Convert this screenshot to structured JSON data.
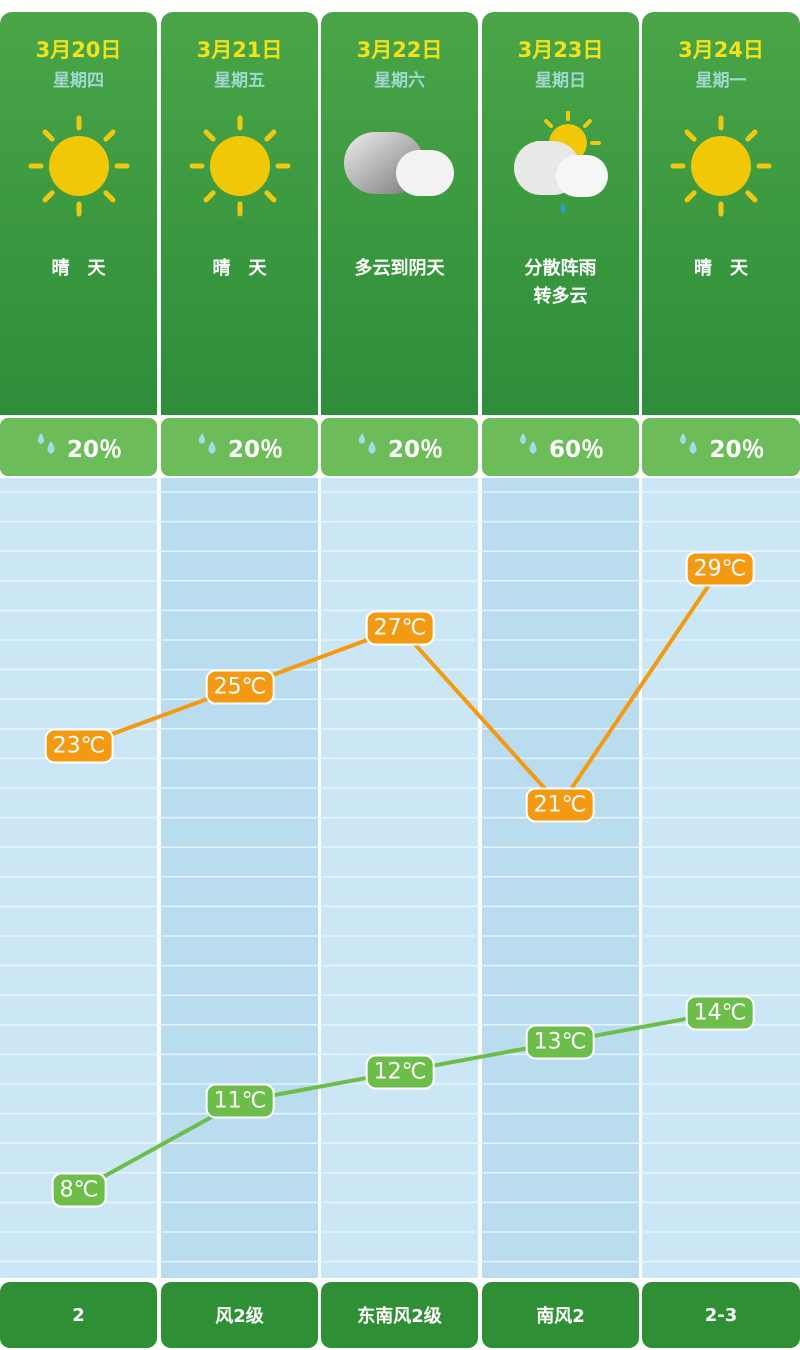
{
  "days": [
    {
      "date": "3月20日",
      "weekday": "星期四",
      "weather": "晴　天",
      "weather_line2": "",
      "icon": "sun-icon",
      "precip": "20％",
      "high": 23,
      "low": 8,
      "high_label": "23℃",
      "low_label": "8℃",
      "wind": "2"
    },
    {
      "date": "3月21日",
      "weekday": "星期五",
      "weather": "晴　天",
      "weather_line2": "",
      "icon": "sun-icon",
      "precip": "20％",
      "high": 25,
      "low": 11,
      "high_label": "25℃",
      "low_label": "11℃",
      "wind": "风2级"
    },
    {
      "date": "3月22日",
      "weekday": "星期六",
      "weather": "多云到阴天",
      "weather_line2": "",
      "icon": "cloud-icon",
      "precip": "20％",
      "high": 27,
      "low": 12,
      "high_label": "27℃",
      "low_label": "12℃",
      "wind": "东南风2级"
    },
    {
      "date": "3月23日",
      "weekday": "星期日",
      "weather": "分散阵雨",
      "weather_line2": "转多云",
      "icon": "rain-cloud-sun-icon",
      "precip": "60％",
      "high": 21,
      "low": 13,
      "high_label": "21℃",
      "low_label": "13℃",
      "wind": "南风2"
    },
    {
      "date": "3月24日",
      "weekday": "星期一",
      "weather": "晴　天",
      "weather_line2": "",
      "icon": "sun-icon",
      "precip": "20％",
      "high": 29,
      "low": 14,
      "high_label": "29℃",
      "low_label": "14℃",
      "wind": "2-3"
    }
  ],
  "colors": {
    "high": "#f39a12",
    "low": "#6cbd4a",
    "header": "#2d8d3a",
    "date": "#f2e21a"
  }
}
